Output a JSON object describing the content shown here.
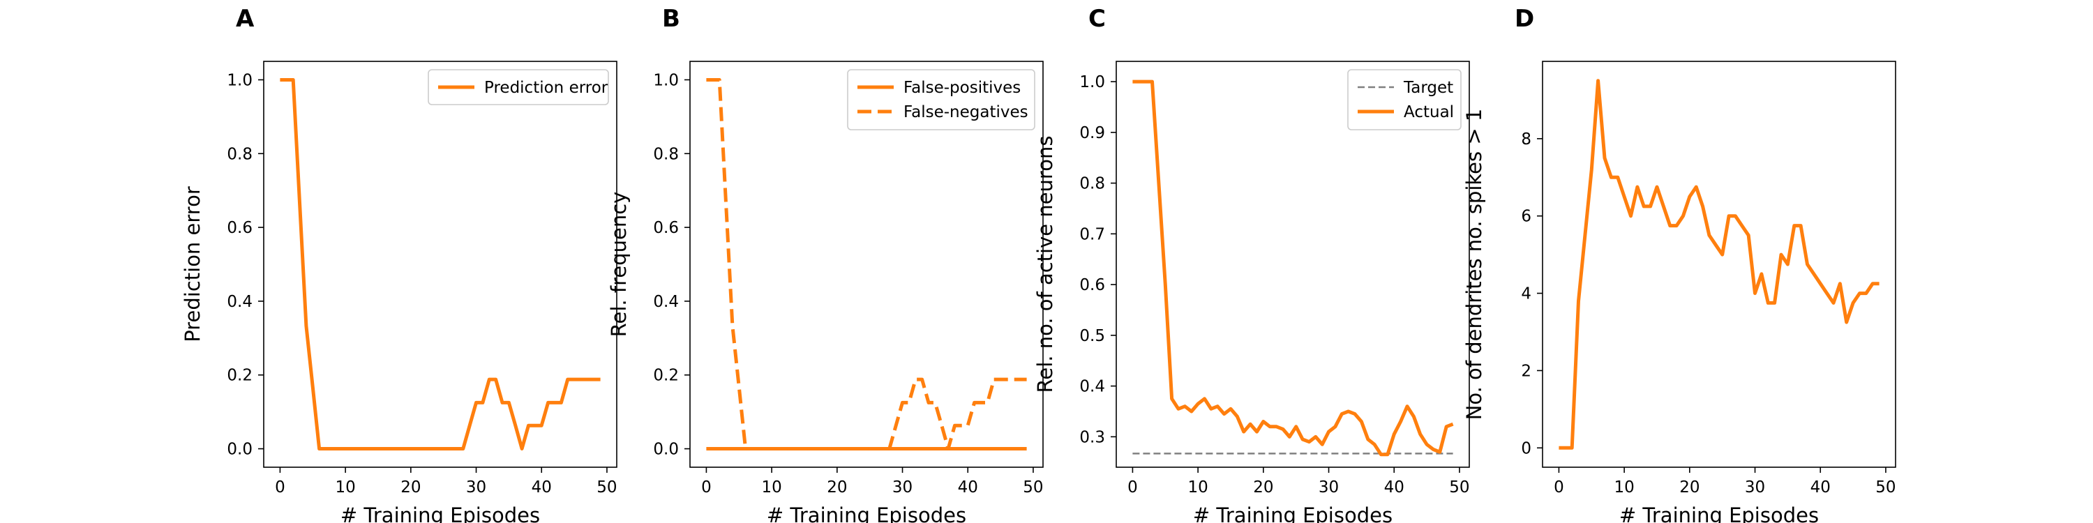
{
  "chart_data": [
    {
      "type": "line",
      "panel_label": "A",
      "xlabel": "# Training Episodes",
      "ylabel": "Prediction error",
      "xlim": [
        -2.5,
        51.5
      ],
      "ylim": [
        -0.05,
        1.05
      ],
      "xticks": [
        0,
        10,
        20,
        30,
        40,
        50
      ],
      "yticks": [
        0.0,
        0.2,
        0.4,
        0.6,
        0.8,
        1.0
      ],
      "ytick_labels": [
        "0.0",
        "0.2",
        "0.4",
        "0.6",
        "0.8",
        "1.0"
      ],
      "legend_position": "top-right",
      "series": [
        {
          "name": "Prediction error",
          "color": "#ff7f0e",
          "style": "solid",
          "x": [
            0,
            1,
            2,
            3,
            4,
            5,
            6,
            7,
            8,
            9,
            10,
            11,
            12,
            13,
            14,
            15,
            16,
            17,
            18,
            19,
            20,
            21,
            22,
            23,
            24,
            25,
            26,
            27,
            28,
            29,
            30,
            31,
            32,
            33,
            34,
            35,
            36,
            37,
            38,
            39,
            40,
            41,
            42,
            43,
            44,
            45,
            46,
            47,
            48,
            49
          ],
          "y": [
            1,
            1,
            1,
            0.667,
            0.333,
            0.167,
            0,
            0,
            0,
            0,
            0,
            0,
            0,
            0,
            0,
            0,
            0,
            0,
            0,
            0,
            0,
            0,
            0,
            0,
            0,
            0,
            0,
            0,
            0,
            0.063,
            0.125,
            0.125,
            0.188,
            0.188,
            0.125,
            0.125,
            0.063,
            0,
            0.063,
            0.063,
            0.063,
            0.125,
            0.125,
            0.125,
            0.188,
            0.188,
            0.188,
            0.188,
            0.188,
            0.188
          ]
        }
      ]
    },
    {
      "type": "line",
      "panel_label": "B",
      "xlabel": "# Training Episodes",
      "ylabel": "Rel. frequency",
      "xlim": [
        -2.5,
        51.5
      ],
      "ylim": [
        -0.05,
        1.05
      ],
      "xticks": [
        0,
        10,
        20,
        30,
        40,
        50
      ],
      "yticks": [
        0.0,
        0.2,
        0.4,
        0.6,
        0.8,
        1.0
      ],
      "ytick_labels": [
        "0.0",
        "0.2",
        "0.4",
        "0.6",
        "0.8",
        "1.0"
      ],
      "legend_position": "top-right",
      "series": [
        {
          "name": "False-positives",
          "color": "#ff7f0e",
          "style": "solid",
          "x": [
            0,
            49
          ],
          "y": [
            0,
            0
          ]
        },
        {
          "name": "False-negatives",
          "color": "#ff7f0e",
          "style": "dashed",
          "x": [
            0,
            1,
            2,
            3,
            4,
            5,
            6,
            7,
            8,
            9,
            10,
            11,
            12,
            13,
            14,
            15,
            16,
            17,
            18,
            19,
            20,
            21,
            22,
            23,
            24,
            25,
            26,
            27,
            28,
            29,
            30,
            31,
            32,
            33,
            34,
            35,
            36,
            37,
            38,
            39,
            40,
            41,
            42,
            43,
            44,
            45,
            46,
            47,
            48,
            49
          ],
          "y": [
            1,
            1,
            1,
            0.667,
            0.333,
            0.167,
            0,
            0,
            0,
            0,
            0,
            0,
            0,
            0,
            0,
            0,
            0,
            0,
            0,
            0,
            0,
            0,
            0,
            0,
            0,
            0,
            0,
            0,
            0,
            0.063,
            0.125,
            0.125,
            0.188,
            0.188,
            0.125,
            0.125,
            0.063,
            0,
            0.063,
            0.063,
            0.063,
            0.125,
            0.125,
            0.125,
            0.188,
            0.188,
            0.188,
            0.188,
            0.188,
            0.188
          ]
        }
      ]
    },
    {
      "type": "line",
      "panel_label": "C",
      "xlabel": "# Training Episodes",
      "ylabel": "Rel. no. of active neurons",
      "xlim": [
        -2.5,
        51.5
      ],
      "ylim": [
        0.24,
        1.04
      ],
      "xticks": [
        0,
        10,
        20,
        30,
        40,
        50
      ],
      "yticks": [
        0.3,
        0.4,
        0.5,
        0.6,
        0.7,
        0.8,
        0.9,
        1.0
      ],
      "ytick_labels": [
        "0.3",
        "0.4",
        "0.5",
        "0.6",
        "0.7",
        "0.8",
        "0.9",
        "1.0"
      ],
      "legend_position": "top-right",
      "series": [
        {
          "name": "Target",
          "color": "#808080",
          "style": "dashed",
          "x": [
            0,
            49
          ],
          "y": [
            0.267,
            0.267
          ]
        },
        {
          "name": "Actual",
          "color": "#ff7f0e",
          "style": "solid",
          "x": [
            0,
            1,
            2,
            3,
            4,
            5,
            6,
            7,
            8,
            9,
            10,
            11,
            12,
            13,
            14,
            15,
            16,
            17,
            18,
            19,
            20,
            21,
            22,
            23,
            24,
            25,
            26,
            27,
            28,
            29,
            30,
            31,
            32,
            33,
            34,
            35,
            36,
            37,
            38,
            39,
            40,
            41,
            42,
            43,
            44,
            45,
            46,
            47,
            48,
            49
          ],
          "y": [
            1,
            1,
            1,
            1,
            0.8,
            0.6,
            0.375,
            0.355,
            0.36,
            0.35,
            0.365,
            0.375,
            0.355,
            0.36,
            0.345,
            0.355,
            0.34,
            0.31,
            0.325,
            0.31,
            0.33,
            0.32,
            0.32,
            0.315,
            0.3,
            0.32,
            0.295,
            0.29,
            0.3,
            0.285,
            0.31,
            0.32,
            0.345,
            0.35,
            0.345,
            0.33,
            0.295,
            0.285,
            0.265,
            0.265,
            0.305,
            0.33,
            0.36,
            0.34,
            0.305,
            0.285,
            0.275,
            0.27,
            0.32,
            0.325
          ]
        }
      ]
    },
    {
      "type": "line",
      "panel_label": "D",
      "xlabel": "# Training Episodes",
      "ylabel": "No. of dendrites no. spikes > 1",
      "xlim": [
        -2.5,
        51.5
      ],
      "ylim": [
        -0.5,
        10.0
      ],
      "xticks": [
        0,
        10,
        20,
        30,
        40,
        50
      ],
      "yticks": [
        0,
        2,
        4,
        6,
        8
      ],
      "ytick_labels": [
        "0",
        "2",
        "4",
        "6",
        "8"
      ],
      "legend_position": "none",
      "series": [
        {
          "name": "",
          "color": "#ff7f0e",
          "style": "solid",
          "x": [
            0,
            1,
            2,
            3,
            4,
            5,
            6,
            7,
            8,
            9,
            10,
            11,
            12,
            13,
            14,
            15,
            16,
            17,
            18,
            19,
            20,
            21,
            22,
            23,
            24,
            25,
            26,
            27,
            28,
            29,
            30,
            31,
            32,
            33,
            34,
            35,
            36,
            37,
            38,
            39,
            40,
            41,
            42,
            43,
            44,
            45,
            46,
            47,
            48,
            49
          ],
          "y": [
            0,
            0,
            0,
            3.8,
            5.5,
            7.2,
            9.5,
            7.5,
            7,
            7,
            6.5,
            6,
            6.75,
            6.25,
            6.25,
            6.75,
            6.25,
            5.75,
            5.75,
            6,
            6.5,
            6.75,
            6.25,
            5.5,
            5.25,
            5,
            6,
            6,
            5.75,
            5.5,
            4,
            4.5,
            3.75,
            3.75,
            5,
            4.75,
            5.75,
            5.75,
            4.75,
            4.5,
            4.25,
            4,
            3.75,
            4.25,
            3.25,
            3.75,
            4,
            4,
            4.25,
            4.25
          ]
        }
      ]
    }
  ]
}
